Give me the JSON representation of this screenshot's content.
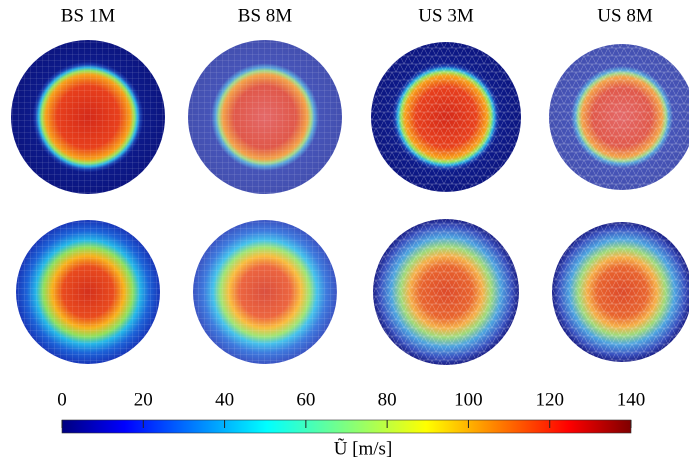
{
  "columns": [
    "BS 1M",
    "BS 8M",
    "US 3M",
    "US 8M"
  ],
  "colorbar": {
    "lim": [
      0,
      140
    ],
    "ticks": [
      0,
      20,
      40,
      60,
      80,
      100,
      120,
      140
    ],
    "label": "Ũ [m/s]"
  }
}
